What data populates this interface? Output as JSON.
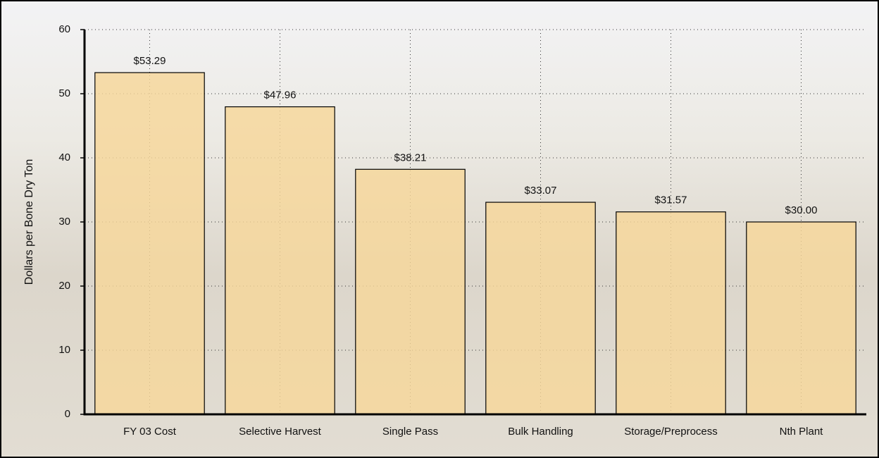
{
  "chart_data": {
    "type": "bar",
    "ylabel": "Dollars per Bone Dry Ton",
    "categories": [
      "FY 03 Cost",
      "Selective Harvest",
      "Single Pass",
      "Bulk Handling",
      "Storage/Preprocess",
      "Nth Plant"
    ],
    "values": [
      53.29,
      47.96,
      38.21,
      33.07,
      31.57,
      30.0
    ],
    "value_labels": [
      "$53.29",
      "$47.96",
      "$38.21",
      "$33.07",
      "$31.57",
      "$30.00"
    ],
    "color": "#f6d79a",
    "ylim": [
      0,
      60
    ],
    "yticks": [
      0,
      10,
      20,
      30,
      40,
      50,
      60
    ],
    "grid": true
  }
}
